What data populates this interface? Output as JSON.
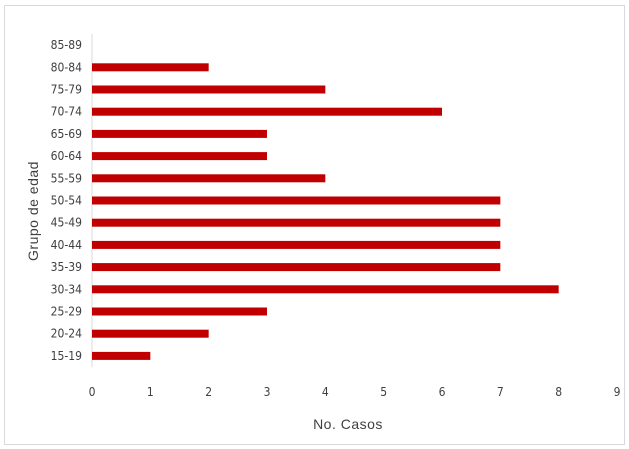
{
  "chart_data": {
    "type": "bar",
    "orientation": "horizontal",
    "categories": [
      "15-19",
      "20-24",
      "25-29",
      "30-34",
      "35-39",
      "40-44",
      "45-49",
      "50-54",
      "55-59",
      "60-64",
      "65-69",
      "70-74",
      "75-79",
      "80-84",
      "85-89"
    ],
    "values": [
      1,
      2,
      3,
      8,
      7,
      7,
      7,
      7,
      4,
      3,
      3,
      6,
      4,
      2,
      0
    ],
    "xlabel": "No. Casos",
    "ylabel": "Grupo de edad",
    "xlim": [
      0,
      9
    ],
    "xticks": [
      0,
      1,
      2,
      3,
      4,
      5,
      6,
      7,
      8,
      9
    ],
    "grid": false,
    "legend": "none",
    "bar_color": "#c00000"
  }
}
